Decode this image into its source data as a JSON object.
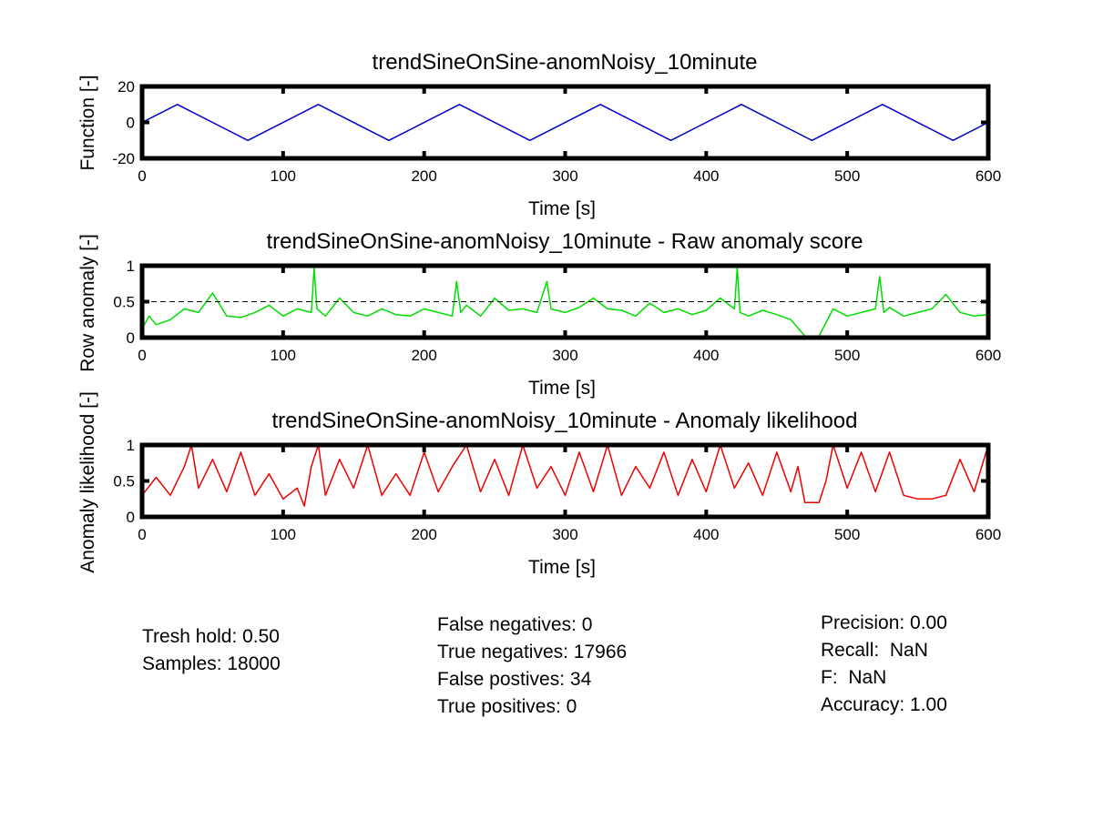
{
  "chart_data": [
    {
      "type": "line",
      "title": "trendSineOnSine-anomNoisy_10minute",
      "xlabel": "Time [s]",
      "ylabel": "Function [-]",
      "xlim": [
        0,
        600
      ],
      "ylim": [
        -20,
        20
      ],
      "xticks": [
        0,
        100,
        200,
        300,
        400,
        500,
        600
      ],
      "yticks": [
        -20,
        0,
        20
      ],
      "grid": false,
      "series": [
        {
          "color": "#0000cc",
          "x": [
            0,
            25,
            75,
            125,
            175,
            225,
            275,
            325,
            375,
            425,
            475,
            525,
            575,
            600
          ],
          "y": [
            0,
            10,
            -10,
            10,
            -10,
            10,
            -10,
            10,
            -10,
            10,
            -10,
            10,
            -10,
            0
          ]
        }
      ]
    },
    {
      "type": "line",
      "title": "trendSineOnSine-anomNoisy_10minute - Raw anomaly score",
      "xlabel": "Time [s]",
      "ylabel": "Row anomaly [-]",
      "xlim": [
        0,
        600
      ],
      "ylim": [
        0,
        1
      ],
      "xticks": [
        0,
        100,
        200,
        300,
        400,
        500,
        600
      ],
      "yticks": [
        0,
        0.5,
        1
      ],
      "threshold": 0.5,
      "grid": false,
      "series": [
        {
          "color": "#00dd00",
          "x": [
            0,
            5,
            10,
            20,
            30,
            40,
            50,
            60,
            70,
            80,
            90,
            100,
            110,
            120,
            122,
            124,
            130,
            140,
            150,
            160,
            170,
            180,
            190,
            200,
            210,
            220,
            223,
            226,
            230,
            240,
            250,
            260,
            270,
            280,
            287,
            290,
            300,
            310,
            320,
            330,
            340,
            350,
            360,
            370,
            380,
            390,
            400,
            410,
            420,
            422,
            424,
            430,
            440,
            450,
            460,
            470,
            480,
            490,
            500,
            510,
            520,
            523,
            526,
            530,
            540,
            550,
            560,
            570,
            580,
            590,
            600
          ],
          "y": [
            0.12,
            0.3,
            0.18,
            0.25,
            0.4,
            0.35,
            0.62,
            0.3,
            0.28,
            0.35,
            0.45,
            0.3,
            0.4,
            0.35,
            0.97,
            0.4,
            0.3,
            0.55,
            0.35,
            0.3,
            0.4,
            0.32,
            0.3,
            0.4,
            0.35,
            0.3,
            0.78,
            0.35,
            0.45,
            0.3,
            0.55,
            0.38,
            0.4,
            0.35,
            0.78,
            0.4,
            0.35,
            0.42,
            0.55,
            0.4,
            0.38,
            0.3,
            0.48,
            0.35,
            0.4,
            0.32,
            0.38,
            0.55,
            0.4,
            0.97,
            0.35,
            0.3,
            0.38,
            0.32,
            0.25,
            0.02,
            0.02,
            0.4,
            0.3,
            0.35,
            0.4,
            0.85,
            0.35,
            0.42,
            0.3,
            0.35,
            0.4,
            0.6,
            0.35,
            0.3,
            0.32
          ]
        },
        {
          "color": "#0000cc",
          "x": [
            0,
            600
          ],
          "y": [
            0,
            0
          ]
        }
      ]
    },
    {
      "type": "line",
      "title": "trendSineOnSine-anomNoisy_10minute - Anomaly likelihood",
      "xlabel": "Time [s]",
      "ylabel": "Anomaly likelihood [-]",
      "xlim": [
        0,
        600
      ],
      "ylim": [
        0,
        1
      ],
      "xticks": [
        0,
        100,
        200,
        300,
        400,
        500,
        600
      ],
      "yticks": [
        0,
        0.5,
        1
      ],
      "grid": false,
      "series": [
        {
          "color": "#ee0000",
          "x": [
            0,
            10,
            20,
            30,
            35,
            40,
            50,
            60,
            70,
            80,
            90,
            100,
            110,
            115,
            120,
            125,
            130,
            140,
            150,
            160,
            170,
            180,
            190,
            200,
            210,
            220,
            230,
            240,
            250,
            260,
            270,
            280,
            290,
            300,
            310,
            320,
            330,
            340,
            350,
            360,
            370,
            380,
            390,
            400,
            410,
            420,
            430,
            440,
            450,
            460,
            465,
            470,
            480,
            485,
            490,
            500,
            510,
            520,
            530,
            540,
            550,
            560,
            570,
            580,
            590,
            600
          ],
          "y": [
            0.3,
            0.55,
            0.3,
            0.7,
            1,
            0.4,
            0.8,
            0.35,
            0.9,
            0.3,
            0.6,
            0.25,
            0.4,
            0.15,
            0.7,
            1,
            0.3,
            0.8,
            0.4,
            1,
            0.3,
            0.6,
            0.3,
            0.9,
            0.35,
            0.7,
            1,
            0.35,
            0.8,
            0.3,
            1,
            0.4,
            0.7,
            0.3,
            0.9,
            0.35,
            1,
            0.3,
            0.7,
            0.4,
            0.9,
            0.3,
            0.8,
            0.35,
            1,
            0.4,
            0.75,
            0.3,
            0.9,
            0.35,
            0.7,
            0.2,
            0.2,
            0.5,
            1,
            0.4,
            0.9,
            0.35,
            0.9,
            0.3,
            0.25,
            0.25,
            0.3,
            0.8,
            0.35,
            1
          ]
        }
      ]
    }
  ],
  "stats": {
    "left": [
      "Tresh hold: 0.50",
      "Samples: 18000"
    ],
    "middle": [
      "False negatives: 0",
      "True negatives: 17966",
      "False postives: 34",
      "True positives: 0"
    ],
    "right": [
      "Precision: 0.00",
      "Recall:  NaN",
      "F:  NaN",
      "Accuracy: 1.00"
    ]
  }
}
